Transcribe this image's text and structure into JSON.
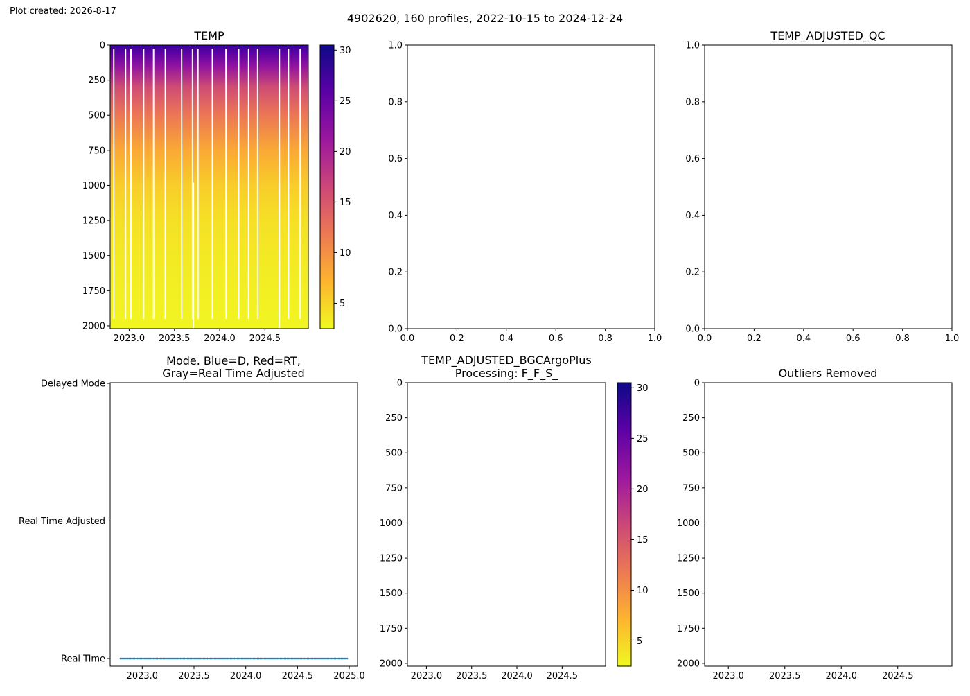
{
  "header": {
    "created": "Plot created: 2026-8-17",
    "suptitle": "4902620, 160 profiles, 2022-10-15 to 2024-12-24"
  },
  "colors": {
    "cmap": [
      "#f0f921",
      "#fdb42f",
      "#ed7953",
      "#cc4778",
      "#9c179e",
      "#5c01a6",
      "#0d0887"
    ],
    "mode_marker": "#1f77b4",
    "axis": "#000000"
  },
  "chart_data": [
    {
      "id": "temp",
      "type": "heatmap",
      "title": "TEMP",
      "xlabel": "",
      "ylabel": "",
      "xlim": [
        2022.79,
        2024.98
      ],
      "ylim": [
        2020,
        0
      ],
      "xticks": [
        2023.0,
        2023.5,
        2024.0,
        2024.5
      ],
      "xtick_labels": [
        "2023.0",
        "2023.5",
        "2024.0",
        "2024.5"
      ],
      "yticks": [
        0,
        250,
        500,
        750,
        1000,
        1250,
        1500,
        1750,
        2000
      ],
      "ytick_labels": [
        "0",
        "250",
        "500",
        "750",
        "1000",
        "1250",
        "1500",
        "1750",
        "2000"
      ],
      "profiles": 160,
      "pressure_max": 2000,
      "temperature_profile": [
        [
          0,
          28
        ],
        [
          50,
          26
        ],
        [
          150,
          22
        ],
        [
          300,
          16
        ],
        [
          500,
          12
        ],
        [
          750,
          8
        ],
        [
          1000,
          5.5
        ],
        [
          1250,
          4.2
        ],
        [
          1500,
          3.6
        ],
        [
          2000,
          2.8
        ]
      ],
      "gap_times": [
        2022.83,
        2022.96,
        2023.02,
        2023.16,
        2023.27,
        2023.4,
        2023.58,
        2023.7,
        2023.76,
        2023.92,
        2024.07,
        2024.21,
        2024.32,
        2024.42,
        2024.66,
        2024.76,
        2024.89
      ],
      "short_profiles": [
        [
          2023.71,
          980
        ],
        [
          2024.66,
          980
        ]
      ],
      "colorbar": {
        "min": 2.5,
        "max": 30.5,
        "ticks": [
          5,
          10,
          15,
          20,
          25,
          30
        ],
        "tick_labels": [
          "5",
          "10",
          "15",
          "20",
          "25",
          "30"
        ]
      }
    },
    {
      "id": "temp-adjusted",
      "type": "scatter",
      "title": "",
      "xlabel": "",
      "ylabel": "",
      "xlim": [
        0,
        1
      ],
      "ylim": [
        0,
        1
      ],
      "xticks": [
        0,
        0.2,
        0.4,
        0.6,
        0.8,
        1.0
      ],
      "xtick_labels": [
        "0.0",
        "0.2",
        "0.4",
        "0.6",
        "0.8",
        "1.0"
      ],
      "yticks": [
        0,
        0.2,
        0.4,
        0.6,
        0.8,
        1.0
      ],
      "ytick_labels": [
        "0.0",
        "0.2",
        "0.4",
        "0.6",
        "0.8",
        "1.0"
      ],
      "values": []
    },
    {
      "id": "temp-adjusted-qc",
      "type": "scatter",
      "title": "TEMP_ADJUSTED_QC",
      "xlabel": "",
      "ylabel": "",
      "xlim": [
        0,
        1
      ],
      "ylim": [
        0,
        1
      ],
      "xticks": [
        0,
        0.2,
        0.4,
        0.6,
        0.8,
        1.0
      ],
      "xtick_labels": [
        "0.0",
        "0.2",
        "0.4",
        "0.6",
        "0.8",
        "1.0"
      ],
      "yticks": [
        0,
        0.2,
        0.4,
        0.6,
        0.8,
        1.0
      ],
      "ytick_labels": [
        "0.0",
        "0.2",
        "0.4",
        "0.6",
        "0.8",
        "1.0"
      ],
      "values": []
    },
    {
      "id": "mode",
      "type": "scatter",
      "title": "Mode. Blue=D, Red=RT,",
      "title2": "Gray=Real Time Adjusted",
      "xlabel": "",
      "ylabel": "",
      "xlim": [
        2022.69,
        2025.08
      ],
      "ylim": [
        0,
        2
      ],
      "xticks": [
        2023.0,
        2023.5,
        2024.0,
        2024.5,
        2025.0
      ],
      "xtick_labels": [
        "2023.0",
        "2023.5",
        "2024.0",
        "2024.5",
        "2025.0"
      ],
      "yticks": [
        0,
        1,
        2
      ],
      "ytick_labels": [
        "Real Time",
        "Real Time Adjusted",
        "Delayed Mode"
      ],
      "x_start": 2022.79,
      "x_end": 2024.98,
      "y_value": 0,
      "count": 160
    },
    {
      "id": "temp-adjusted-bgcargoplus",
      "type": "heatmap",
      "title": "TEMP_ADJUSTED_BGCArgoPlus",
      "title2": "Processing: F_F_S_",
      "xlabel": "",
      "ylabel": "",
      "xlim": [
        2022.79,
        2024.98
      ],
      "ylim": [
        2020,
        0
      ],
      "xticks": [
        2023.0,
        2023.5,
        2024.0,
        2024.5
      ],
      "xtick_labels": [
        "2023.0",
        "2023.5",
        "2024.0",
        "2024.5"
      ],
      "yticks": [
        0,
        250,
        500,
        750,
        1000,
        1250,
        1500,
        1750,
        2000
      ],
      "ytick_labels": [
        "0",
        "250",
        "500",
        "750",
        "1000",
        "1250",
        "1500",
        "1750",
        "2000"
      ],
      "values": [],
      "colorbar": {
        "min": 2.5,
        "max": 30.5,
        "ticks": [
          5,
          10,
          15,
          20,
          25,
          30
        ],
        "tick_labels": [
          "5",
          "10",
          "15",
          "20",
          "25",
          "30"
        ]
      }
    },
    {
      "id": "outliers-removed",
      "type": "heatmap",
      "title": "Outliers Removed",
      "xlabel": "",
      "ylabel": "",
      "xlim": [
        2022.79,
        2024.98
      ],
      "ylim": [
        2020,
        0
      ],
      "xticks": [
        2023.0,
        2023.5,
        2024.0,
        2024.5
      ],
      "xtick_labels": [
        "2023.0",
        "2023.5",
        "2024.0",
        "2024.5"
      ],
      "yticks": [
        0,
        250,
        500,
        750,
        1000,
        1250,
        1500,
        1750,
        2000
      ],
      "ytick_labels": [
        "0",
        "250",
        "500",
        "750",
        "1000",
        "1250",
        "1500",
        "1750",
        "2000"
      ],
      "values": []
    }
  ]
}
